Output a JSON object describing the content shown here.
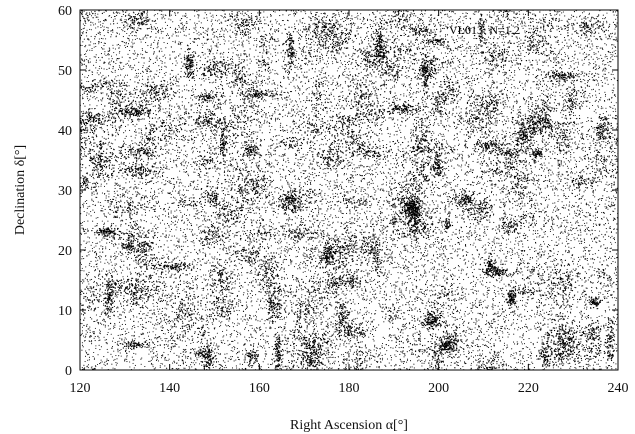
{
  "chart_data": {
    "type": "scatter",
    "title": "",
    "xlabel": "Right Ascension α[°]",
    "ylabel": "Declination δ[°]",
    "xlim": [
      120,
      240
    ],
    "ylim": [
      0,
      60
    ],
    "x_ticks": [
      120,
      140,
      160,
      180,
      200,
      220,
      240
    ],
    "y_ticks": [
      0,
      10,
      20,
      30,
      40,
      50,
      60
    ],
    "annotation": "VL013: N=1.2",
    "grid": false,
    "legend": "none",
    "point_color": "#000000",
    "background_color": "#ffffff",
    "point_count_note": "dense field of points filling the full range of both axes"
  }
}
